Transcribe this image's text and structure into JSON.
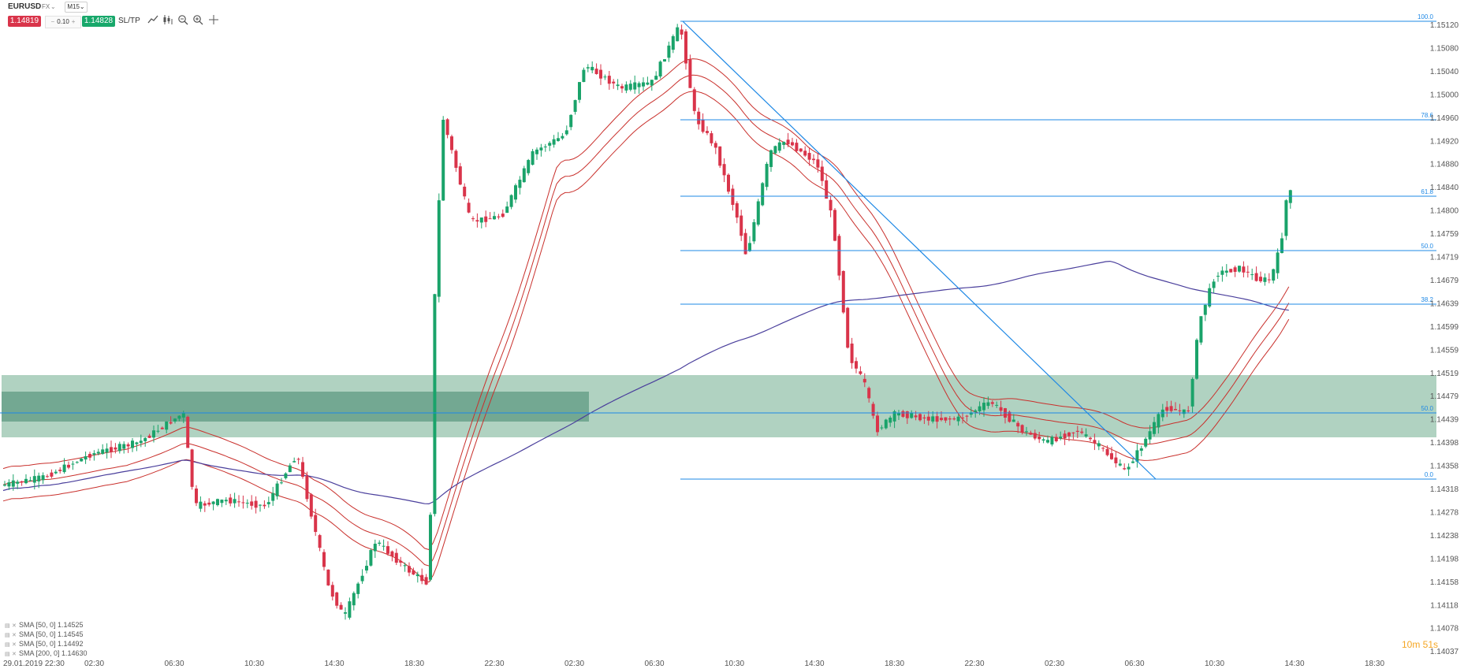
{
  "toolbar": {
    "symbol": "EURUSD",
    "market": "FX",
    "timeframe": "M15",
    "sell_price": "1.14819",
    "quantity_minus": "−",
    "quantity": "0.10",
    "quantity_plus": "+",
    "buy_price": "1.14828",
    "sltp_label": "SL/TP",
    "tool_icons": [
      "line-tool-icon",
      "candlestick-type-icon",
      "zoom-out-icon",
      "zoom-in-icon",
      "crosshair-icon"
    ]
  },
  "colors": {
    "sell": "#d9344a",
    "buy": "#18a86b",
    "bull_candle": "#1aa36a",
    "bear_candle": "#d9344a",
    "fib_line": "#1e88e5",
    "sma_short": "#c9302c",
    "sma_long": "#4a3f9c",
    "zone_fill": "#8fbfa7",
    "zone_inner": "#5f9a82",
    "countdown": "#f5a623"
  },
  "price_axis": [
    "1.15120",
    "1.15080",
    "1.15040",
    "1.15000",
    "1.14960",
    "1.14920",
    "1.14880",
    "1.14840",
    "1.14800",
    "1.14759",
    "1.14719",
    "1.14679",
    "1.14639",
    "1.14599",
    "1.14559",
    "1.14519",
    "1.14479",
    "1.14439",
    "1.14398",
    "1.14358",
    "1.14318",
    "1.14278",
    "1.14238",
    "1.14198",
    "1.14158",
    "1.14118",
    "1.14078",
    "1.14037"
  ],
  "time_axis": [
    "29.01.2019 22:30",
    "02:30",
    "06:30",
    "10:30",
    "14:30",
    "18:30",
    "22:30",
    "02:30",
    "06:30",
    "10:30",
    "14:30",
    "18:30",
    "22:30",
    "02:30",
    "06:30",
    "10:30",
    "14:30",
    "18:30"
  ],
  "fib_levels": [
    "100.0",
    "78.6",
    "61.8",
    "50.0",
    "38.2",
    "50.0",
    "0.0"
  ],
  "legend": [
    "SMA [50, 0] 1.14525",
    "SMA [50, 0] 1.14545",
    "SMA [50, 0] 1.14492",
    "SMA [200, 0] 1.14630"
  ],
  "countdown": "10m 51s"
}
